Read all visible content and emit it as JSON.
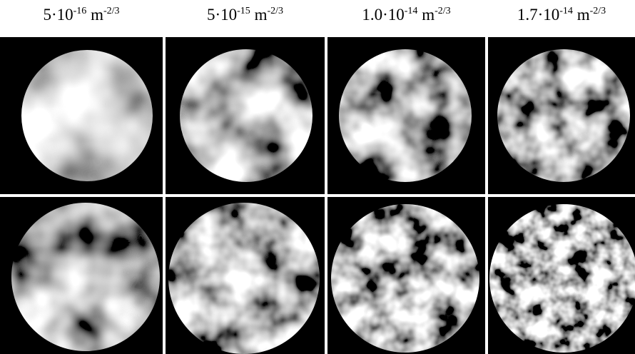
{
  "columns": [
    {
      "base": "5·10",
      "exponent": "-16",
      "unit": "m",
      "unit_exponent": "-2/3"
    },
    {
      "base": "5·10",
      "exponent": "-15",
      "unit": "m",
      "unit_exponent": "-2/3"
    },
    {
      "base": "1.0·10",
      "exponent": "-14",
      "unit": "m",
      "unit_exponent": "-2/3"
    },
    {
      "base": "1.7·10",
      "exponent": "-14",
      "unit": "m",
      "unit_exponent": "-2/3"
    }
  ]
}
